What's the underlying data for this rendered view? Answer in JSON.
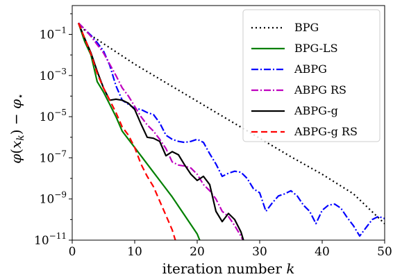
{
  "chart_data": {
    "type": "line",
    "xlabel": "iteration number k",
    "ylabel": "φ(x_k) − φ⋆",
    "xlim": [
      0,
      50
    ],
    "ylim_log10": [
      -11,
      0.4
    ],
    "yscale": "log",
    "x_ticks": [
      0,
      10,
      20,
      30,
      40,
      50
    ],
    "y_ticks": [
      {
        "exp": -1,
        "base": "10",
        "sup": "−1"
      },
      {
        "exp": -3,
        "base": "10",
        "sup": "−3"
      },
      {
        "exp": -5,
        "base": "10",
        "sup": "−5"
      },
      {
        "exp": -7,
        "base": "10",
        "sup": "−7"
      },
      {
        "exp": -9,
        "base": "10",
        "sup": "−9"
      },
      {
        "exp": -11,
        "base": "10",
        "sup": "−11"
      }
    ],
    "grid": false,
    "legend_position": "top-right",
    "series": [
      {
        "name": "BPG",
        "color": "#000000",
        "dash": "2,4",
        "points": [
          [
            1,
            -0.45
          ],
          [
            2,
            -0.8
          ],
          [
            3,
            -1.05
          ],
          [
            4,
            -1.25
          ],
          [
            5,
            -1.45
          ],
          [
            6,
            -1.65
          ],
          [
            8,
            -2.05
          ],
          [
            10,
            -2.45
          ],
          [
            15,
            -3.35
          ],
          [
            20,
            -4.25
          ],
          [
            25,
            -5.15
          ],
          [
            30,
            -6.05
          ],
          [
            35,
            -6.95
          ],
          [
            40,
            -7.8
          ],
          [
            45,
            -8.75
          ],
          [
            50,
            -10.2
          ]
        ]
      },
      {
        "name": "BPG-LS",
        "color": "#008000",
        "dash": "",
        "points": [
          [
            1,
            -0.45
          ],
          [
            2,
            -1.35
          ],
          [
            3,
            -2.0
          ],
          [
            4,
            -3.3
          ],
          [
            5,
            -3.8
          ],
          [
            6,
            -4.4
          ],
          [
            7,
            -5.0
          ],
          [
            8,
            -5.7
          ],
          [
            10,
            -6.5
          ],
          [
            12,
            -7.3
          ],
          [
            14,
            -8.1
          ],
          [
            16,
            -8.9
          ],
          [
            18,
            -9.8
          ],
          [
            20,
            -10.7
          ],
          [
            20.4,
            -11
          ]
        ]
      },
      {
        "name": "ABPG",
        "color": "#0000ff",
        "dash": "10,3,2,3",
        "points": [
          [
            1,
            -0.45
          ],
          [
            2,
            -0.75
          ],
          [
            3,
            -1.05
          ],
          [
            4,
            -1.4
          ],
          [
            5,
            -1.8
          ],
          [
            6,
            -2.5
          ],
          [
            7,
            -3.5
          ],
          [
            8,
            -4.2
          ],
          [
            9,
            -4.4
          ],
          [
            10,
            -4.6
          ],
          [
            11,
            -4.65
          ],
          [
            12,
            -4.8
          ],
          [
            13,
            -4.9
          ],
          [
            14,
            -5.3
          ],
          [
            15,
            -5.9
          ],
          [
            16,
            -6.1
          ],
          [
            17,
            -6.2
          ],
          [
            18,
            -6.25
          ],
          [
            19,
            -6.2
          ],
          [
            20,
            -6.1
          ],
          [
            21,
            -6.25
          ],
          [
            22,
            -6.8
          ],
          [
            23,
            -7.3
          ],
          [
            24,
            -7.9
          ],
          [
            25,
            -7.75
          ],
          [
            26,
            -7.65
          ],
          [
            27,
            -7.7
          ],
          [
            28,
            -8.0
          ],
          [
            29,
            -8.5
          ],
          [
            30,
            -8.7
          ],
          [
            31,
            -9.6
          ],
          [
            32,
            -9.2
          ],
          [
            33,
            -8.85
          ],
          [
            34,
            -8.75
          ],
          [
            35,
            -8.6
          ],
          [
            36,
            -8.85
          ],
          [
            37,
            -9.3
          ],
          [
            38,
            -9.6
          ],
          [
            39,
            -10.2
          ],
          [
            40,
            -9.55
          ],
          [
            41,
            -9.3
          ],
          [
            42,
            -9.25
          ],
          [
            43,
            -9.45
          ],
          [
            44,
            -9.9
          ],
          [
            45,
            -10.3
          ],
          [
            46,
            -10.8
          ],
          [
            47,
            -10.4
          ],
          [
            48,
            -10.0
          ],
          [
            49,
            -9.85
          ],
          [
            50,
            -9.95
          ]
        ]
      },
      {
        "name": "ABPG RS",
        "color": "#bf00bf",
        "dash": "10,3,2,3",
        "points": [
          [
            1,
            -0.45
          ],
          [
            2,
            -0.75
          ],
          [
            3,
            -1.1
          ],
          [
            4,
            -1.5
          ],
          [
            5,
            -1.9
          ],
          [
            6,
            -2.45
          ],
          [
            7,
            -3.0
          ],
          [
            8,
            -3.6
          ],
          [
            9,
            -4.0
          ],
          [
            10,
            -4.5
          ],
          [
            11,
            -5.0
          ],
          [
            12,
            -5.4
          ],
          [
            13,
            -5.7
          ],
          [
            14,
            -6.1
          ],
          [
            15,
            -6.55
          ],
          [
            16,
            -7.2
          ],
          [
            17,
            -7.35
          ],
          [
            18,
            -7.4
          ],
          [
            19,
            -7.5
          ],
          [
            20,
            -7.8
          ],
          [
            21,
            -8.3
          ],
          [
            22,
            -8.6
          ],
          [
            23,
            -9.0
          ],
          [
            24,
            -9.6
          ],
          [
            25,
            -9.85
          ],
          [
            26,
            -10.3
          ],
          [
            27,
            -10.8
          ],
          [
            27.3,
            -11
          ]
        ]
      },
      {
        "name": "ABPG-g",
        "color": "#000000",
        "dash": "",
        "points": [
          [
            1,
            -0.45
          ],
          [
            2,
            -1.2
          ],
          [
            3,
            -1.9
          ],
          [
            4,
            -2.8
          ],
          [
            5,
            -3.6
          ],
          [
            6,
            -4.2
          ],
          [
            7,
            -4.15
          ],
          [
            8,
            -4.2
          ],
          [
            9,
            -4.35
          ],
          [
            10,
            -4.65
          ],
          [
            11,
            -5.35
          ],
          [
            12,
            -6.0
          ],
          [
            13,
            -6.05
          ],
          [
            14,
            -6.2
          ],
          [
            15,
            -6.9
          ],
          [
            16,
            -6.7
          ],
          [
            17,
            -6.85
          ],
          [
            18,
            -7.35
          ],
          [
            19,
            -7.8
          ],
          [
            20,
            -8.1
          ],
          [
            21,
            -7.9
          ],
          [
            22,
            -8.3
          ],
          [
            23,
            -9.6
          ],
          [
            24,
            -10.1
          ],
          [
            25,
            -9.7
          ],
          [
            26,
            -10.0
          ],
          [
            27,
            -10.6
          ],
          [
            27.4,
            -11
          ]
        ]
      },
      {
        "name": "ABPG-g RS",
        "color": "#ff0000",
        "dash": "9,5",
        "points": [
          [
            1,
            -0.45
          ],
          [
            2,
            -1.2
          ],
          [
            3,
            -1.95
          ],
          [
            4,
            -2.9
          ],
          [
            5,
            -3.6
          ],
          [
            6,
            -4.2
          ],
          [
            7,
            -4.8
          ],
          [
            8,
            -5.5
          ],
          [
            9,
            -5.9
          ],
          [
            10,
            -6.5
          ],
          [
            11,
            -7.3
          ],
          [
            12,
            -7.9
          ],
          [
            13,
            -8.4
          ],
          [
            14,
            -9.1
          ],
          [
            15,
            -9.8
          ],
          [
            16,
            -10.5
          ],
          [
            16.5,
            -11
          ]
        ]
      }
    ]
  }
}
